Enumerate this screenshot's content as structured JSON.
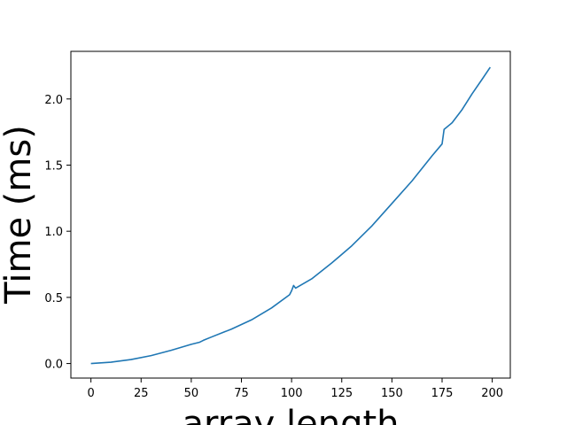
{
  "chart_data": {
    "type": "line",
    "xlabel": "array length",
    "ylabel": "Time (ms)",
    "xlim": [
      -10,
      209
    ],
    "ylim": [
      -0.11,
      2.36
    ],
    "xticks": [
      0,
      25,
      50,
      75,
      100,
      125,
      150,
      175,
      200
    ],
    "xtick_labels": [
      "0",
      "25",
      "50",
      "75",
      "100",
      "125",
      "150",
      "175",
      "200"
    ],
    "yticks": [
      0.0,
      0.5,
      1.0,
      1.5,
      2.0
    ],
    "ytick_labels": [
      "0.0",
      "0.5",
      "1.0",
      "1.5",
      "2.0"
    ],
    "grid": false,
    "legend": "none",
    "series": [
      {
        "color": "#1f77b4",
        "x": [
          0,
          10,
          20,
          30,
          40,
          50,
          54,
          56,
          60,
          70,
          80,
          90,
          99,
          100,
          101,
          102,
          110,
          120,
          130,
          140,
          150,
          160,
          170,
          175,
          176,
          180,
          185,
          190,
          195,
          199
        ],
        "y": [
          0.0,
          0.01,
          0.03,
          0.06,
          0.1,
          0.145,
          0.16,
          0.175,
          0.2,
          0.26,
          0.33,
          0.42,
          0.52,
          0.55,
          0.59,
          0.57,
          0.64,
          0.76,
          0.89,
          1.04,
          1.21,
          1.38,
          1.57,
          1.66,
          1.77,
          1.82,
          1.92,
          2.04,
          2.15,
          2.24
        ]
      }
    ]
  }
}
